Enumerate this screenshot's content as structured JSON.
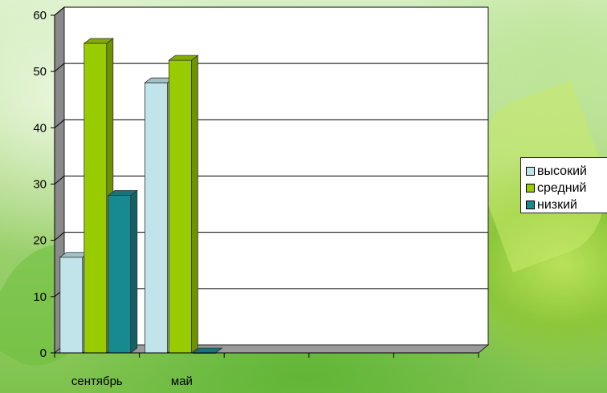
{
  "chart_data": {
    "type": "bar",
    "title": "",
    "xlabel": "",
    "ylabel": "",
    "categories": [
      "сентябрь",
      "май",
      "",
      "",
      ""
    ],
    "series": [
      {
        "name": "высокий",
        "values": [
          17,
          48,
          null,
          null,
          null
        ],
        "color": "#c0e4ea"
      },
      {
        "name": "средний",
        "values": [
          55,
          52,
          null,
          null,
          null
        ],
        "color": "#99cc00"
      },
      {
        "name": "низкий",
        "values": [
          28,
          0,
          null,
          null,
          null
        ],
        "color": "#168a8f"
      }
    ],
    "ylim": [
      0,
      60
    ],
    "yticks": [
      "0",
      "10",
      "20",
      "30",
      "40",
      "50",
      "60"
    ],
    "grid": true,
    "legend_position": "right"
  }
}
